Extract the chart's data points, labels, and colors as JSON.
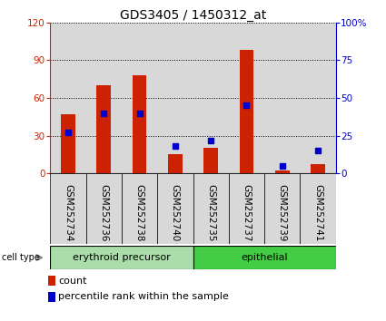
{
  "title": "GDS3405 / 1450312_at",
  "samples": [
    "GSM252734",
    "GSM252736",
    "GSM252738",
    "GSM252740",
    "GSM252735",
    "GSM252737",
    "GSM252739",
    "GSM252741"
  ],
  "counts": [
    47,
    70,
    78,
    15,
    20,
    98,
    2,
    7
  ],
  "percentile_ranks": [
    27,
    40,
    40,
    18,
    22,
    45,
    5,
    15
  ],
  "cell_type_groups": [
    {
      "label": "erythroid precursor",
      "start": 0,
      "end": 4,
      "color": "#aaddaa"
    },
    {
      "label": "epithelial",
      "start": 4,
      "end": 8,
      "color": "#44cc44"
    }
  ],
  "ylim_left": [
    0,
    120
  ],
  "ylim_right": [
    0,
    100
  ],
  "yticks_left": [
    0,
    30,
    60,
    90,
    120
  ],
  "yticks_right": [
    0,
    25,
    50,
    75,
    100
  ],
  "yticklabels_right": [
    "0",
    "25",
    "50",
    "75",
    "100%"
  ],
  "bar_color": "#cc2200",
  "marker_color": "#0000cc",
  "grid_color": "#333333",
  "title_fontsize": 10,
  "tick_fontsize": 7.5,
  "label_fontsize": 8,
  "bar_width": 0.4,
  "marker_size": 5,
  "grey_col": "#d8d8d8",
  "white_col": "#ffffff"
}
